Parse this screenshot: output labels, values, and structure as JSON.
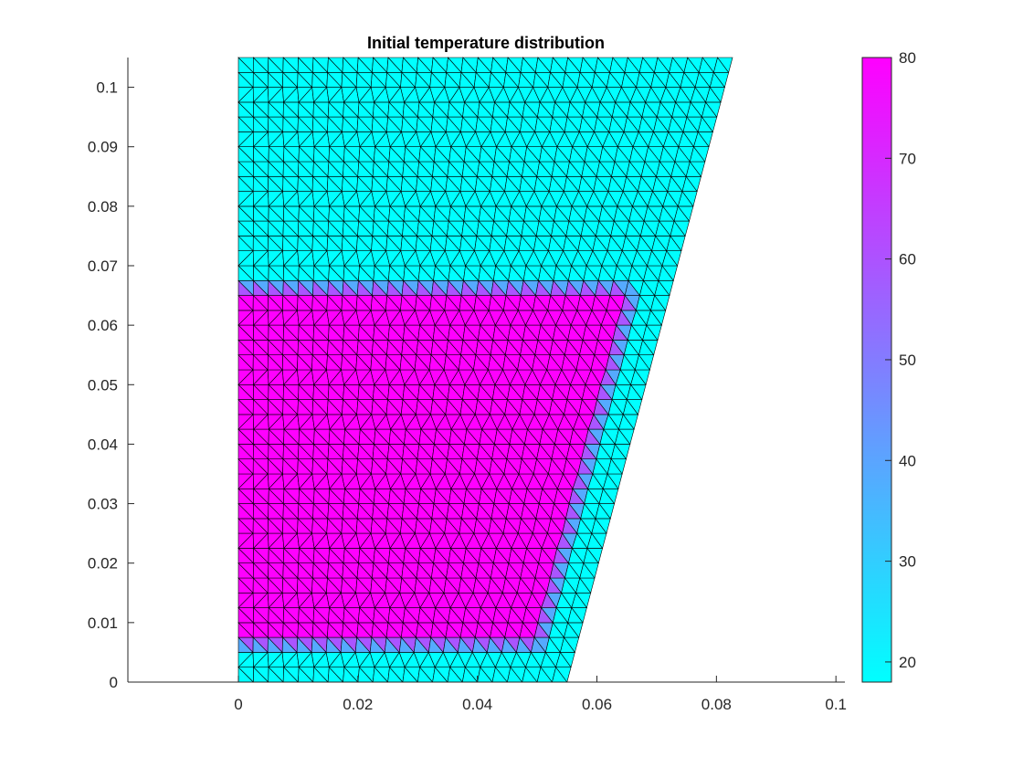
{
  "chart_data": {
    "type": "heatmap",
    "subtype": "triangular-mesh-patch",
    "title": "Initial temperature distribution",
    "xlim": [
      -0.0185,
      0.1015
    ],
    "ylim": [
      0,
      0.105
    ],
    "xticks": [
      0,
      0.02,
      0.04,
      0.06,
      0.08,
      0.1
    ],
    "xtick_labels": [
      "0",
      "0.02",
      "0.04",
      "0.06",
      "0.08",
      "0.1"
    ],
    "yticks": [
      0,
      0.01,
      0.02,
      0.03,
      0.04,
      0.05,
      0.06,
      0.07,
      0.08,
      0.09,
      0.1
    ],
    "ytick_labels": [
      "0",
      "0.01",
      "0.02",
      "0.03",
      "0.04",
      "0.05",
      "0.06",
      "0.07",
      "0.08",
      "0.09",
      "0.1"
    ],
    "domain_outline": [
      [
        0,
        0
      ],
      [
        0.055,
        0
      ],
      [
        0.0827,
        0.105
      ],
      [
        0,
        0.105
      ]
    ],
    "hot_region": {
      "y_range": [
        0.0065,
        0.0665
      ],
      "temperature": 80
    },
    "cold_temperature": 18,
    "mesh_size": 0.0025,
    "colormap": "cool",
    "colormap_colors": [
      "#00ffff",
      "#ff00ff"
    ],
    "colorbar": {
      "limits": [
        18,
        80
      ],
      "ticks": [
        20,
        30,
        40,
        50,
        60,
        70,
        80
      ],
      "tick_labels": [
        "20",
        "30",
        "40",
        "50",
        "60",
        "70",
        "80"
      ],
      "location": "right"
    },
    "grid": false
  }
}
